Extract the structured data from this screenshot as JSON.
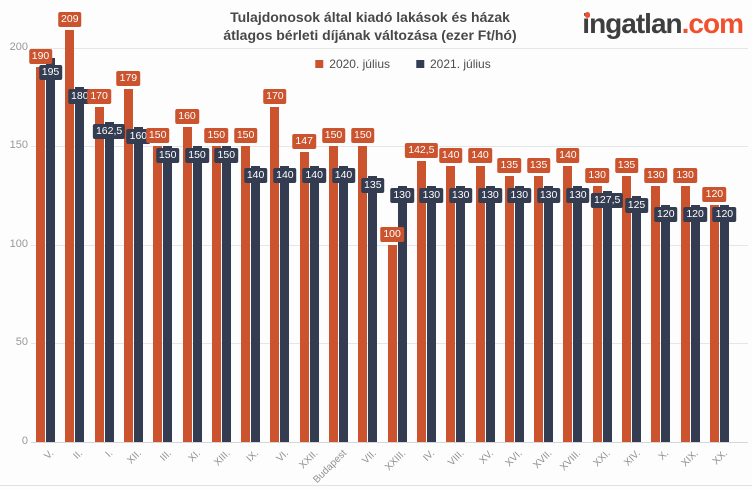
{
  "title": {
    "line1": "Tulajdonosok által kiadó lakások és házak",
    "line2": "átlagos bérleti díjának változása (ezer Ft/hó)"
  },
  "logo": {
    "name": "ingatlan",
    "tld": ".com"
  },
  "legend": [
    {
      "label": "2020. július",
      "color": "#cb542f"
    },
    {
      "label": "2021. július",
      "color": "#333c50"
    }
  ],
  "colors": {
    "series_2020": "#cb542f",
    "series_2021": "#333c50",
    "title_text": "#484848",
    "axis_text": "#989898",
    "gridline": "#e6e6e6",
    "logo_dark": "#3e3e3e",
    "logo_orange": "#f0512c",
    "background": "#fdfdfd"
  },
  "chart_data": {
    "type": "bar",
    "title": "Tulajdonosok által kiadó lakások és házak átlagos bérleti díjának változása (ezer Ft/hó)",
    "categories": [
      "V.",
      "II.",
      "I.",
      "XII.",
      "III.",
      "XI.",
      "XIII.",
      "IX.",
      "VI.",
      "XXII.",
      "Budapest",
      "VII.",
      "XXIII.",
      "IV.",
      "VIII.",
      "XV.",
      "XVI.",
      "XVII.",
      "XVIII.",
      "XXI.",
      "XIV.",
      "X.",
      "XIX.",
      "XX."
    ],
    "series": [
      {
        "name": "2020. július",
        "color": "#cb542f",
        "values": [
          190,
          209,
          170,
          179,
          150,
          160,
          150,
          150,
          170,
          147,
          150,
          150,
          100,
          142.5,
          140,
          140,
          135,
          135,
          140,
          130,
          135,
          130,
          130,
          120
        ]
      },
      {
        "name": "2021. július",
        "color": "#333c50",
        "values": [
          195,
          180,
          162.5,
          160,
          150,
          150,
          150,
          140,
          140,
          140,
          140,
          135,
          130,
          130,
          130,
          130,
          130,
          130,
          130,
          127.5,
          125,
          120,
          120,
          120
        ]
      }
    ],
    "xlabel": "",
    "ylabel": "",
    "ylim": [
      0,
      215
    ],
    "yticks": [
      0,
      50,
      100,
      150,
      200
    ],
    "ytick_labels": [
      "0",
      "50",
      "100",
      "150",
      "200"
    ],
    "grid": true,
    "legend_position": "top",
    "data_labels": true,
    "decimal_separator": ","
  }
}
